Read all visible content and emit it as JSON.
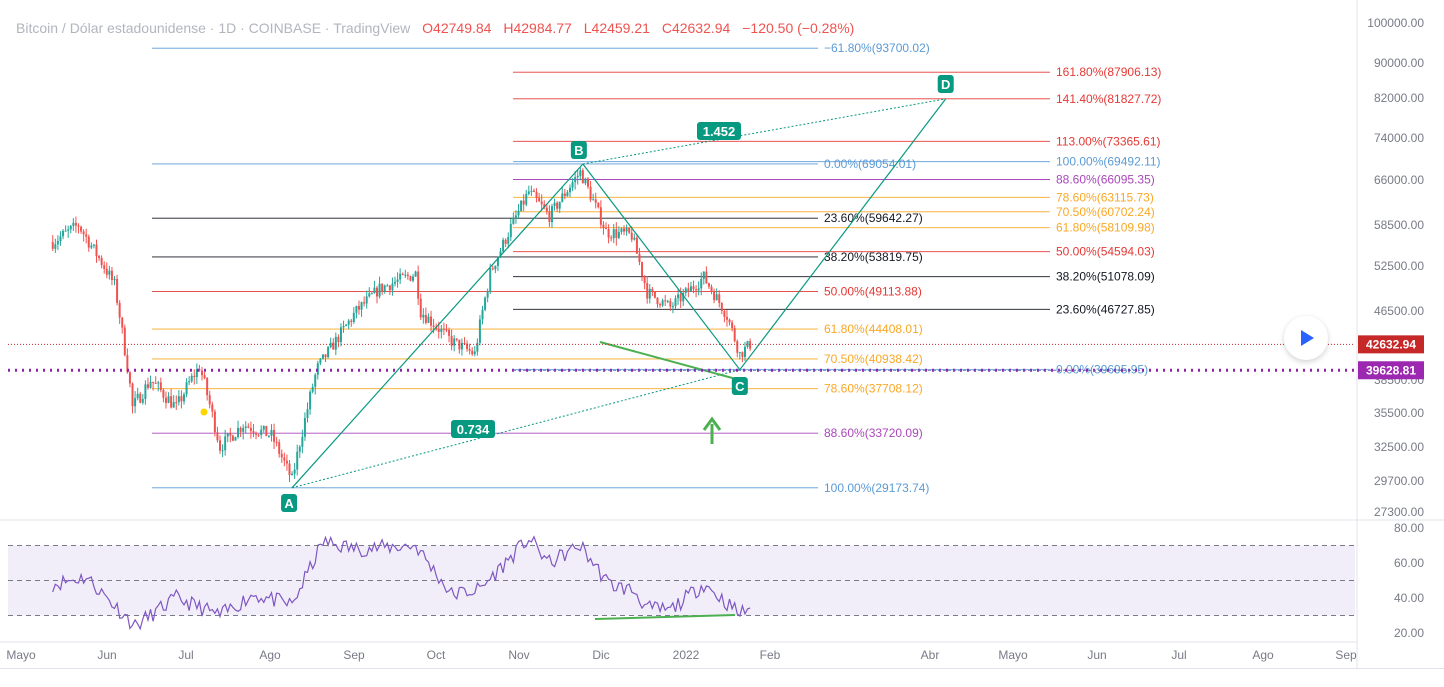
{
  "header": {
    "title": "Bitcoin / Dólar estadounidense · 1D · COINBASE · TradingView",
    "open": "O42749.84",
    "high": "H42984.77",
    "low": "L42459.21",
    "close": "C42632.94",
    "change": "−120.50 (−0.28%)"
  },
  "colors": {
    "up": "#26a69a",
    "down": "#ef5350",
    "pattern": "#089981",
    "rsi": "#7e57c2",
    "price_tag": "#c62828",
    "level_tag": "#9c27b0"
  },
  "chart_data": {
    "type": "candlestick",
    "instrument": "Bitcoin / Dólar estadounidense",
    "timeframe": "1D",
    "exchange": "COINBASE",
    "ohlc_last": {
      "open": 42749.84,
      "high": 42984.77,
      "low": 42459.21,
      "close": 42632.94,
      "change": -120.5,
      "change_pct": -0.28
    },
    "price_axis_ticks": [
      "100000.00",
      "90000.00",
      "82000.00",
      "74000.00",
      "66000.00",
      "58500.00",
      "52500.00",
      "46500.00",
      "38500.00",
      "35500.00",
      "32500.00",
      "29700.00",
      "27300.00"
    ],
    "rsi_axis_ticks": [
      "80.00",
      "60.00",
      "40.00",
      "20.00"
    ],
    "time_axis_labels": [
      "Mayo",
      "Jun",
      "Jul",
      "Ago",
      "Sep",
      "Oct",
      "Nov",
      "Dic",
      "2022",
      "Feb",
      "Abr",
      "Mayo",
      "Jun",
      "Jul",
      "Ago",
      "Sep"
    ],
    "price_tags": [
      {
        "label": "42632.94",
        "value": 42632.94,
        "color": "#c62828"
      },
      {
        "label": "39628.81",
        "value": 39628.81,
        "color": "#9c27b0"
      }
    ],
    "candle_path": [
      {
        "date": "2021-04-18",
        "price": 56000
      },
      {
        "date": "2021-04-28",
        "price": 58500
      },
      {
        "date": "2021-05-12",
        "price": 50000
      },
      {
        "date": "2021-05-19",
        "price": 36000
      },
      {
        "date": "2021-05-26",
        "price": 38500
      },
      {
        "date": "2021-06-05",
        "price": 36000
      },
      {
        "date": "2021-06-14",
        "price": 40000
      },
      {
        "date": "2021-06-22",
        "price": 32500
      },
      {
        "date": "2021-07-01",
        "price": 34500
      },
      {
        "date": "2021-07-12",
        "price": 33500
      },
      {
        "date": "2021-07-20",
        "price": 29800
      },
      {
        "date": "2021-07-30",
        "price": 40000
      },
      {
        "date": "2021-08-14",
        "price": 46500
      },
      {
        "date": "2021-08-23",
        "price": 49500
      },
      {
        "date": "2021-09-06",
        "price": 51500
      },
      {
        "date": "2021-09-08",
        "price": 46500
      },
      {
        "date": "2021-09-20",
        "price": 43000
      },
      {
        "date": "2021-09-29",
        "price": 41500
      },
      {
        "date": "2021-10-05",
        "price": 51500
      },
      {
        "date": "2021-10-20",
        "price": 64000
      },
      {
        "date": "2021-10-28",
        "price": 60000
      },
      {
        "date": "2021-11-09",
        "price": 67500
      },
      {
        "date": "2021-11-19",
        "price": 57500
      },
      {
        "date": "2021-11-29",
        "price": 57000
      },
      {
        "date": "2021-12-05",
        "price": 49000
      },
      {
        "date": "2021-12-14",
        "price": 47000
      },
      {
        "date": "2021-12-27",
        "price": 51000
      },
      {
        "date": "2022-01-05",
        "price": 46000
      },
      {
        "date": "2022-01-10",
        "price": 41500
      },
      {
        "date": "2022-01-14",
        "price": 42632.94
      }
    ],
    "rsi_path": [
      {
        "date": "2021-04-18",
        "value": 48
      },
      {
        "date": "2021-05-01",
        "value": 52
      },
      {
        "date": "2021-05-20",
        "value": 24
      },
      {
        "date": "2021-06-05",
        "value": 40
      },
      {
        "date": "2021-06-22",
        "value": 30
      },
      {
        "date": "2021-07-05",
        "value": 42
      },
      {
        "date": "2021-07-20",
        "value": 36
      },
      {
        "date": "2021-08-01",
        "value": 72
      },
      {
        "date": "2021-08-14",
        "value": 68
      },
      {
        "date": "2021-09-06",
        "value": 70
      },
      {
        "date": "2021-09-20",
        "value": 42
      },
      {
        "date": "2021-10-01",
        "value": 45
      },
      {
        "date": "2021-10-20",
        "value": 74
      },
      {
        "date": "2021-10-28",
        "value": 60
      },
      {
        "date": "2021-11-09",
        "value": 70
      },
      {
        "date": "2021-11-20",
        "value": 48
      },
      {
        "date": "2021-11-30",
        "value": 44
      },
      {
        "date": "2021-12-05",
        "value": 34
      },
      {
        "date": "2021-12-14",
        "value": 33
      },
      {
        "date": "2021-12-27",
        "value": 48
      },
      {
        "date": "2022-01-10",
        "value": 31
      },
      {
        "date": "2022-01-14",
        "value": 35
      }
    ],
    "pattern_points": [
      {
        "label": "A",
        "date": "2021-07-20",
        "price": 29173.74
      },
      {
        "label": "B",
        "date": "2021-11-10",
        "price": 69054.01
      },
      {
        "label": "C",
        "date": "2022-01-10",
        "price": 39695.95
      },
      {
        "label": "D",
        "date": "2022-03-31",
        "price": 81827.72
      }
    ],
    "ratios": [
      {
        "label": "1.452"
      },
      {
        "label": "0.734"
      }
    ],
    "fib_retracement_AB": [
      {
        "label": "0.00%(69054.01)",
        "value": 69054.01,
        "color": "#5b9bd5"
      },
      {
        "label": "23.60%(59642.27)",
        "value": 59642.27,
        "color": "#131722"
      },
      {
        "label": "38.20%(53819.75)",
        "value": 53819.75,
        "color": "#131722"
      },
      {
        "label": "50.00%(49113.88)",
        "value": 49113.88,
        "color": "#e53935"
      },
      {
        "label": "61.80%(44408.01)",
        "value": 44408.01,
        "color": "#f9a825"
      },
      {
        "label": "70.50%(40938.42)",
        "value": 40938.42,
        "color": "#f9a825"
      },
      {
        "label": "78.60%(37708.12)",
        "value": 37708.12,
        "color": "#f9a825"
      },
      {
        "label": "88.60%(33720.09)",
        "value": 33720.09,
        "color": "#ab47bc"
      },
      {
        "label": "100.00%(29173.74)",
        "value": 29173.74,
        "color": "#5b9bd5"
      }
    ],
    "fib_extension_C": [
      {
        "label": "−61.80%(93700.02)",
        "value": 93700.02,
        "color": "#5b9bd5"
      },
      {
        "label": "161.80%(87906.13)",
        "value": 87906.13,
        "color": "#e53935"
      },
      {
        "label": "141.40%(81827.72)",
        "value": 81827.72,
        "color": "#e53935"
      },
      {
        "label": "113.00%(73365.61)",
        "value": 73365.61,
        "color": "#e53935"
      },
      {
        "label": "100.00%(69492.11)",
        "value": 69492.11,
        "color": "#5b9bd5"
      },
      {
        "label": "88.60%(66095.35)",
        "value": 66095.35,
        "color": "#ab47bc"
      },
      {
        "label": "78.60%(63115.73)",
        "value": 63115.73,
        "color": "#f9a825"
      },
      {
        "label": "70.50%(60702.24)",
        "value": 60702.24,
        "color": "#f9a825"
      },
      {
        "label": "61.80%(58109.98)",
        "value": 58109.98,
        "color": "#f9a825"
      },
      {
        "label": "50.00%(54594.03)",
        "value": 54594.03,
        "color": "#e53935"
      },
      {
        "label": "38.20%(51078.09)",
        "value": 51078.09,
        "color": "#131722"
      },
      {
        "label": "23.60%(46727.85)",
        "value": 46727.85,
        "color": "#131722"
      },
      {
        "label": "0.00%(39695.95)",
        "value": 39695.95,
        "color": "#5b9bd5"
      }
    ],
    "rsi_levels": [
      70,
      50,
      30
    ]
  }
}
